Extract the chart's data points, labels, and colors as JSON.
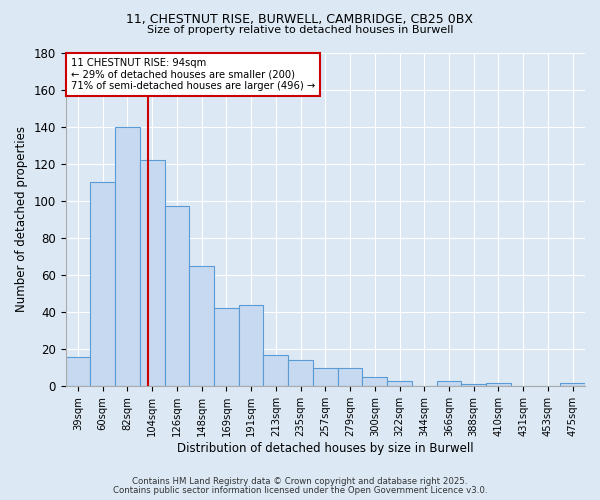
{
  "title1": "11, CHESTNUT RISE, BURWELL, CAMBRIDGE, CB25 0BX",
  "title2": "Size of property relative to detached houses in Burwell",
  "xlabel": "Distribution of detached houses by size in Burwell",
  "ylabel": "Number of detached properties",
  "bar_labels": [
    "39sqm",
    "60sqm",
    "82sqm",
    "104sqm",
    "126sqm",
    "148sqm",
    "169sqm",
    "191sqm",
    "213sqm",
    "235sqm",
    "257sqm",
    "279sqm",
    "300sqm",
    "322sqm",
    "344sqm",
    "366sqm",
    "388sqm",
    "410sqm",
    "431sqm",
    "453sqm",
    "475sqm"
  ],
  "bar_heights": [
    16,
    110,
    140,
    122,
    97,
    65,
    42,
    44,
    17,
    14,
    10,
    10,
    5,
    3,
    0,
    3,
    1,
    2,
    0,
    0,
    2
  ],
  "bar_color": "#c6d9f0",
  "bar_edge_color": "#5b9bd5",
  "red_line_x": 2.83,
  "ylim": [
    0,
    180
  ],
  "yticks": [
    0,
    20,
    40,
    60,
    80,
    100,
    120,
    140,
    160,
    180
  ],
  "bg_color": "#dce9f5",
  "plot_bg_color": "#dce9f5",
  "grid_color": "#ffffff",
  "footer1": "Contains HM Land Registry data © Crown copyright and database right 2025.",
  "footer2": "Contains public sector information licensed under the Open Government Licence v3.0."
}
